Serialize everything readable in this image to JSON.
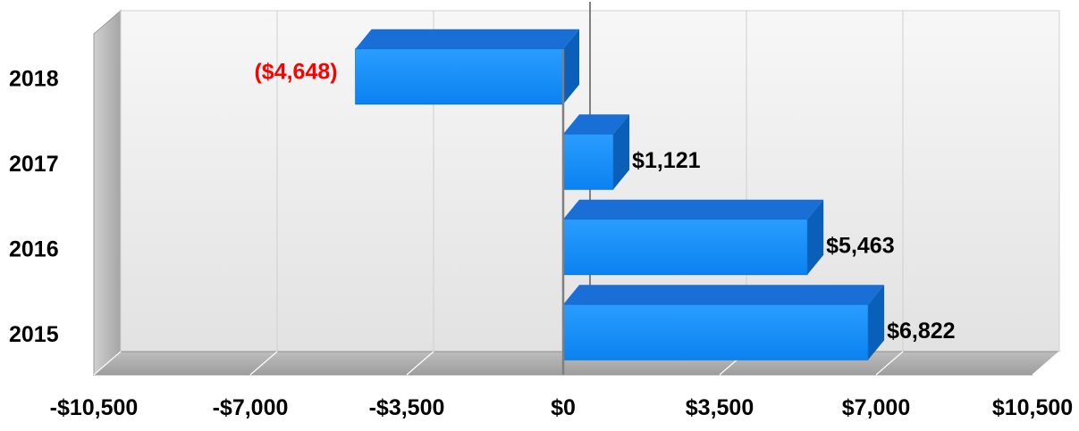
{
  "chart_data": {
    "type": "bar",
    "orientation": "horizontal",
    "style": "3d",
    "categories": [
      "2015",
      "2016",
      "2017",
      "2018"
    ],
    "values": [
      6822,
      5463,
      1121,
      -4648
    ],
    "data_labels": [
      "$6,822",
      "$5,463",
      "$1,121",
      "($4,648)"
    ],
    "x_ticks": [
      -10500,
      -7000,
      -3500,
      0,
      3500,
      7000,
      10500
    ],
    "x_tick_labels": [
      "-$10,500",
      "-$7,000",
      "-$3,500",
      "$0",
      "$3,500",
      "$7,000",
      "$10,500"
    ],
    "xlim": [
      -10500,
      10500
    ],
    "grid": true,
    "legend": "none",
    "colors": {
      "bar_front": "#0a8cff",
      "bar_top": "#1a6fd6",
      "bar_side": "#0a5fb8",
      "positive_label": "#000000",
      "negative_label": "#ff0000",
      "wall": "#ececec",
      "floor": "#a9a9a9",
      "side_wall": "#b8b8b8"
    }
  }
}
